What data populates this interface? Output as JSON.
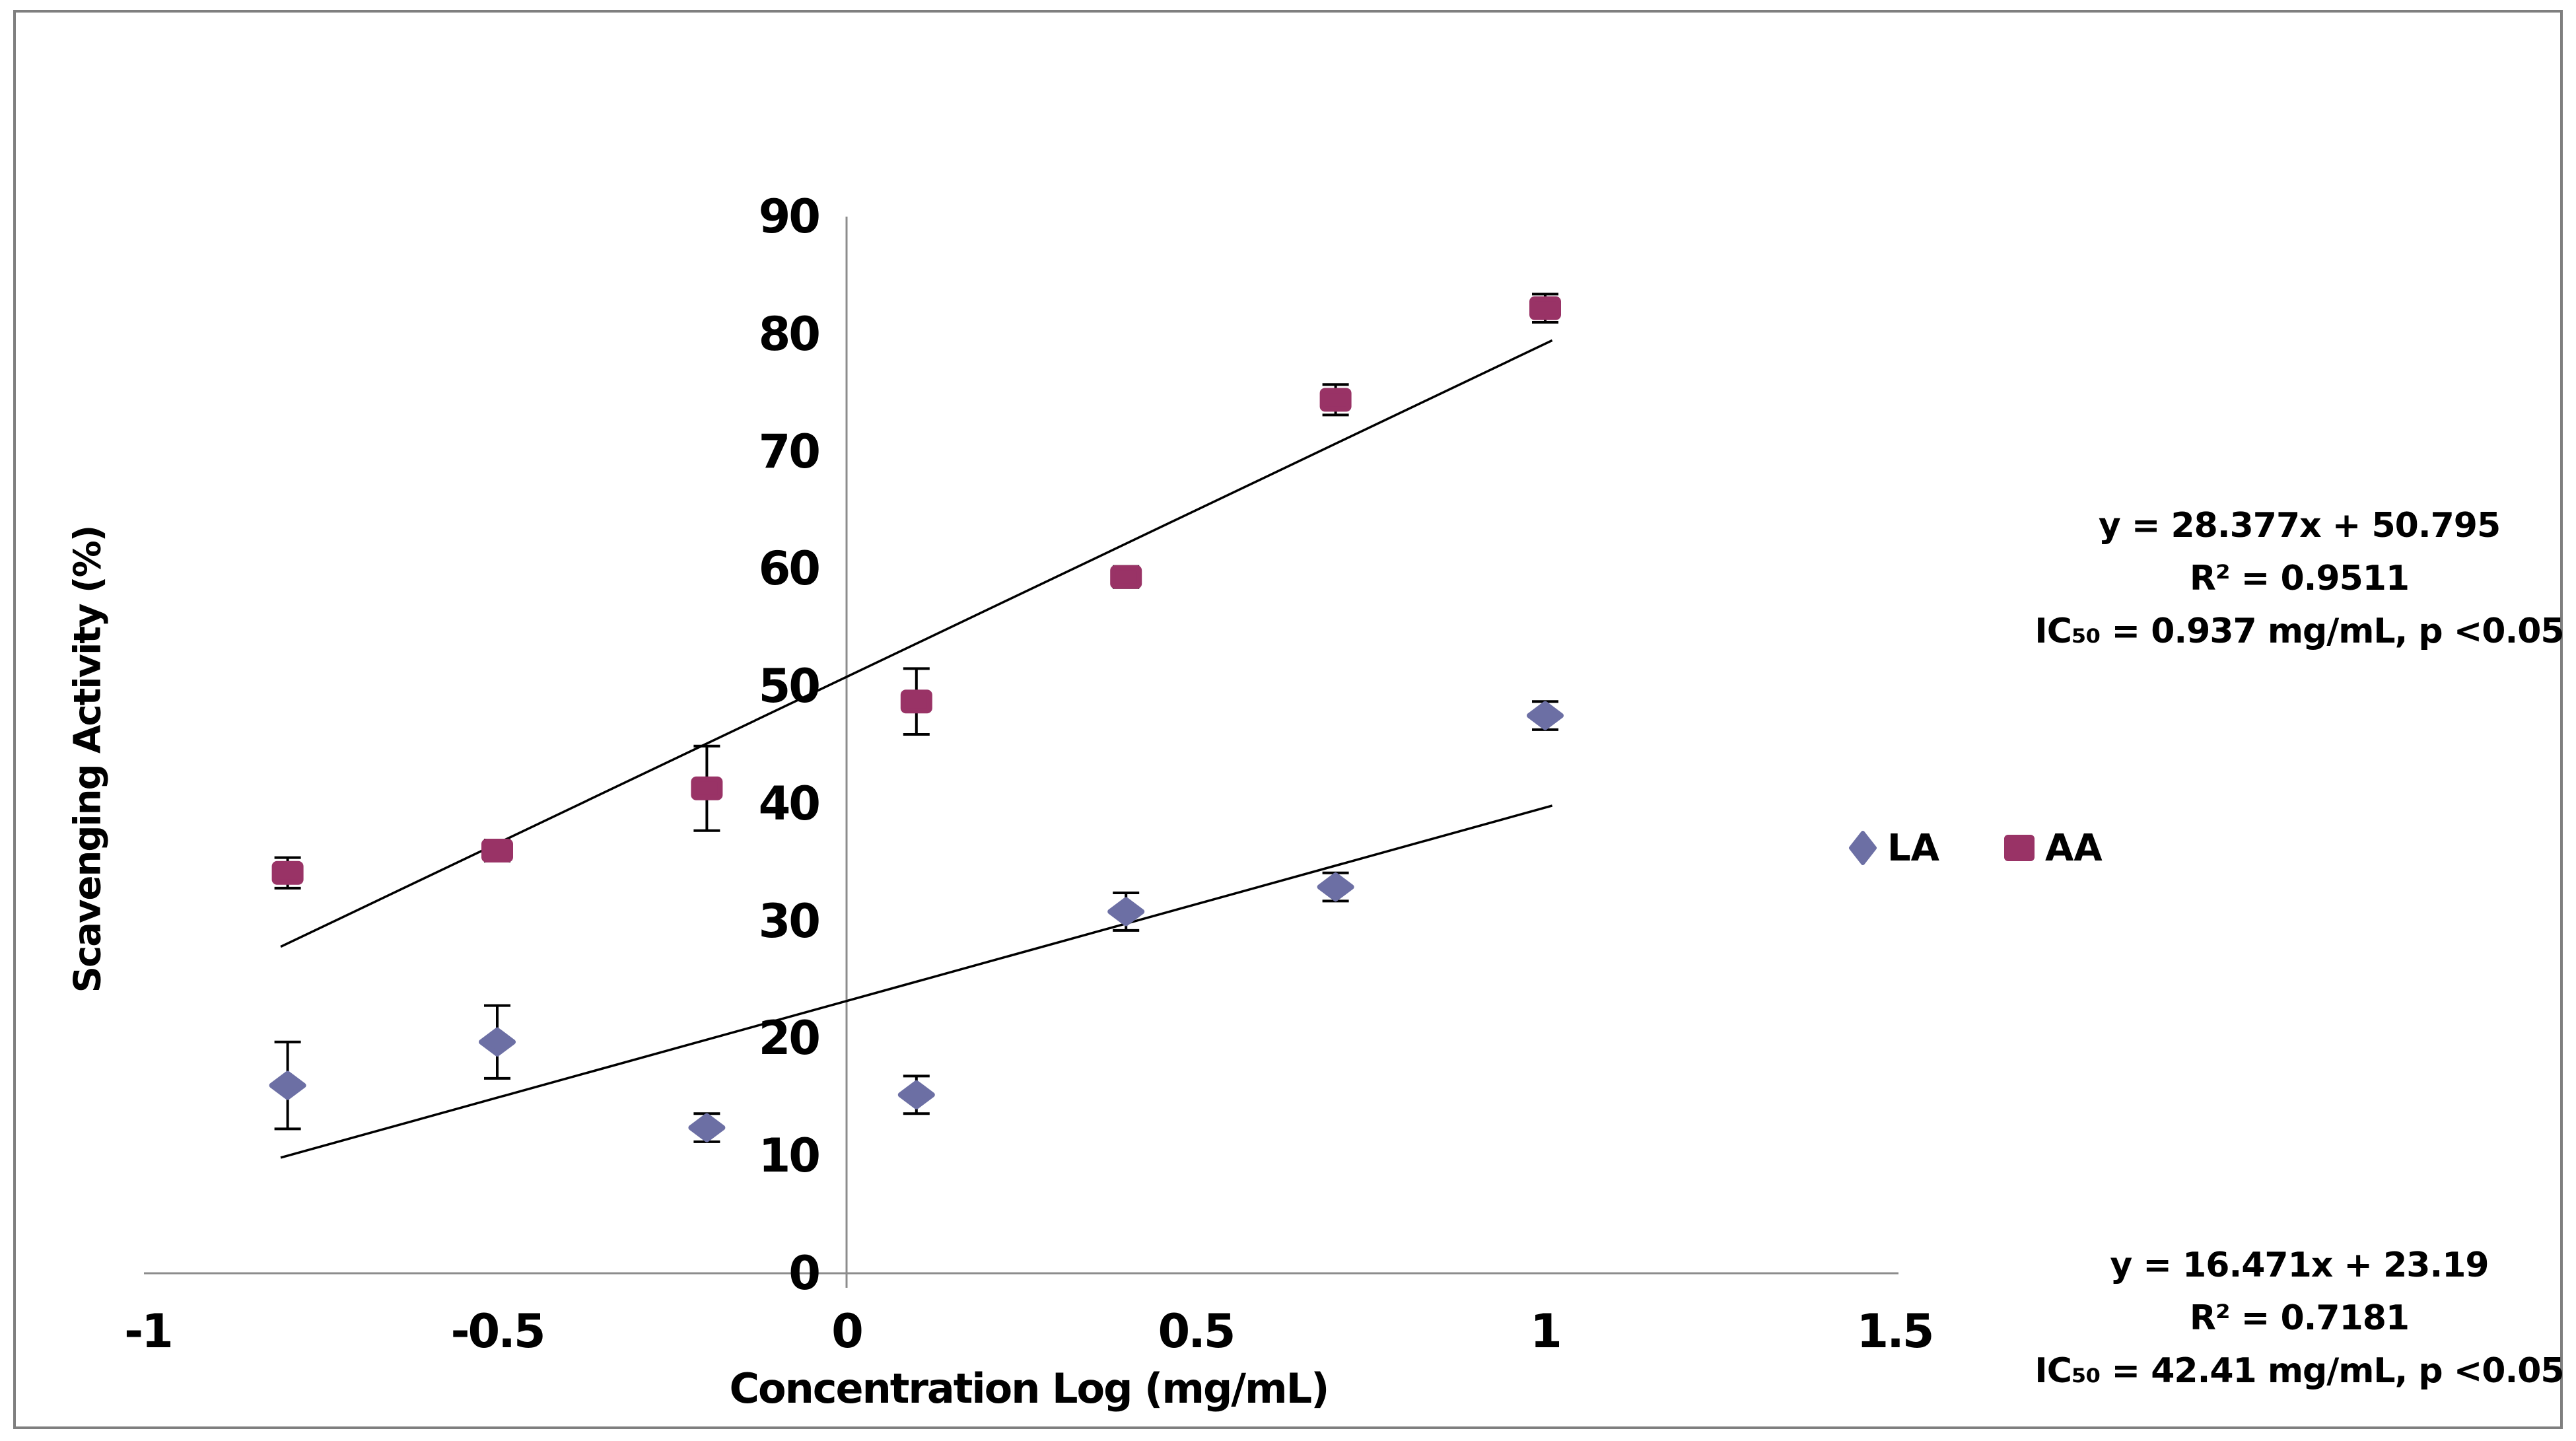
{
  "figure": {
    "background": "#FFFFFF",
    "border_color": "#7F7F7F"
  },
  "chart_data": {
    "type": "scatter",
    "title": "",
    "xlabel": "Concentration Log (mg/mL)",
    "ylabel": "Scavenging Activity (%)",
    "xlim": [
      -1,
      1.5
    ],
    "ylim": [
      0,
      90
    ],
    "x_ticks": [
      -1,
      -0.5,
      0,
      0.5,
      1,
      1.5
    ],
    "x_tick_labels": [
      "-1",
      "-0.5",
      "0",
      "0.5",
      "1",
      "1.5"
    ],
    "y_ticks": [
      0,
      10,
      20,
      30,
      40,
      50,
      60,
      70,
      80,
      90
    ],
    "grid": false,
    "axis_color": "#8C8C8C",
    "trendline_color": "#000000",
    "error_bar_color": "#000000",
    "legend_position": "right-middle",
    "x": [
      -0.8,
      -0.5,
      -0.2,
      0.1,
      0.4,
      0.7,
      1.0
    ],
    "series": [
      {
        "name": "LA",
        "marker": "diamond",
        "color": "#6C6FA4",
        "y": [
          16.0,
          19.7,
          12.4,
          15.2,
          30.8,
          32.9,
          47.5
        ],
        "yerr": [
          3.7,
          3.1,
          1.2,
          1.6,
          1.6,
          1.2,
          1.2
        ],
        "trendline": {
          "equation": "y = 16.471x + 23.19",
          "slope": 16.471,
          "intercept": 23.19,
          "r_squared": 0.7181,
          "x_start": -0.81,
          "x_end": 1.01
        }
      },
      {
        "name": "AA",
        "marker": "square",
        "color": "#993366",
        "y": [
          34.1,
          36.0,
          41.3,
          48.7,
          59.3,
          74.4,
          82.2
        ],
        "yerr": [
          1.3,
          0.9,
          3.6,
          2.8,
          0.9,
          1.3,
          1.2
        ],
        "trendline": {
          "equation": "y = 28.377x + 50.795",
          "slope": 28.377,
          "intercept": 50.795,
          "r_squared": 0.9511,
          "x_start": -0.81,
          "x_end": 1.01
        }
      }
    ],
    "annotations": [
      {
        "series": "AA",
        "lines": [
          "y = 28.377x + 50.795",
          "R² = 0.9511",
          "IC₅₀ = 0.937 mg/mL, p <0.05"
        ]
      },
      {
        "series": "LA",
        "lines": [
          "y = 16.471x + 23.19",
          "R² = 0.7181",
          "IC₅₀ = 42.41 mg/mL, p <0.05"
        ]
      }
    ]
  },
  "legend": {
    "items": [
      {
        "label": "LA",
        "marker": "diamond"
      },
      {
        "label": "AA",
        "marker": "square"
      }
    ]
  }
}
